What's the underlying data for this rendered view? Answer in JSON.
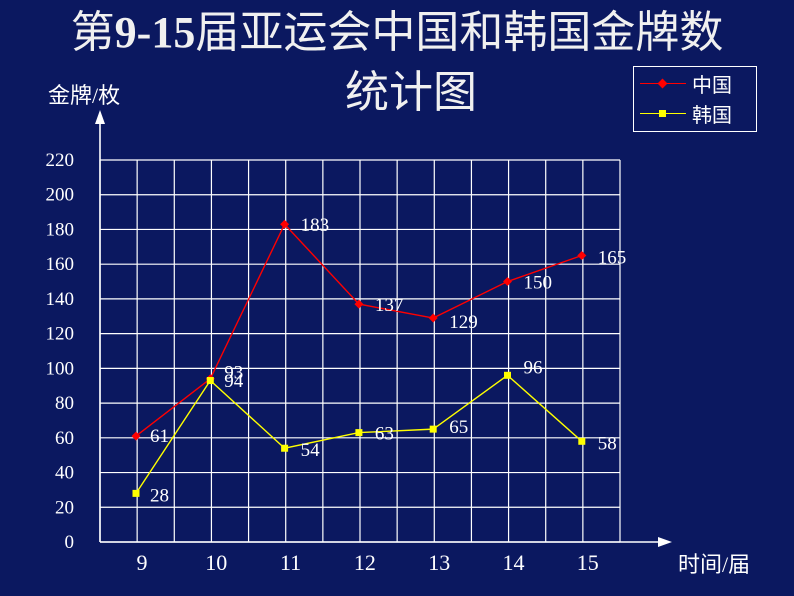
{
  "title": {
    "line1_prefix": "第",
    "line1_num": "9-15",
    "line1_rest": "届亚运会中国和韩国金牌数",
    "line2": "统计图"
  },
  "chart_data": {
    "type": "line",
    "ylabel": "金牌/枚",
    "xlabel": "时间/届",
    "x": [
      9,
      10,
      11,
      12,
      13,
      14,
      15
    ],
    "ylim": [
      0,
      220
    ],
    "yticks": [
      0,
      20,
      40,
      60,
      80,
      100,
      120,
      140,
      160,
      180,
      200,
      220
    ],
    "grid": true,
    "legend_position": "top-right",
    "series": [
      {
        "name": "中国",
        "values": [
          61,
          94,
          183,
          137,
          129,
          150,
          165
        ],
        "color": "#ff0000",
        "marker": "diamond"
      },
      {
        "name": "韩国",
        "values": [
          28,
          93,
          54,
          63,
          65,
          96,
          58
        ],
        "color": "#ffff00",
        "marker": "square"
      }
    ]
  },
  "colors": {
    "background": "#0b1860",
    "grid": "#ffffff",
    "text": "#ffffff"
  }
}
